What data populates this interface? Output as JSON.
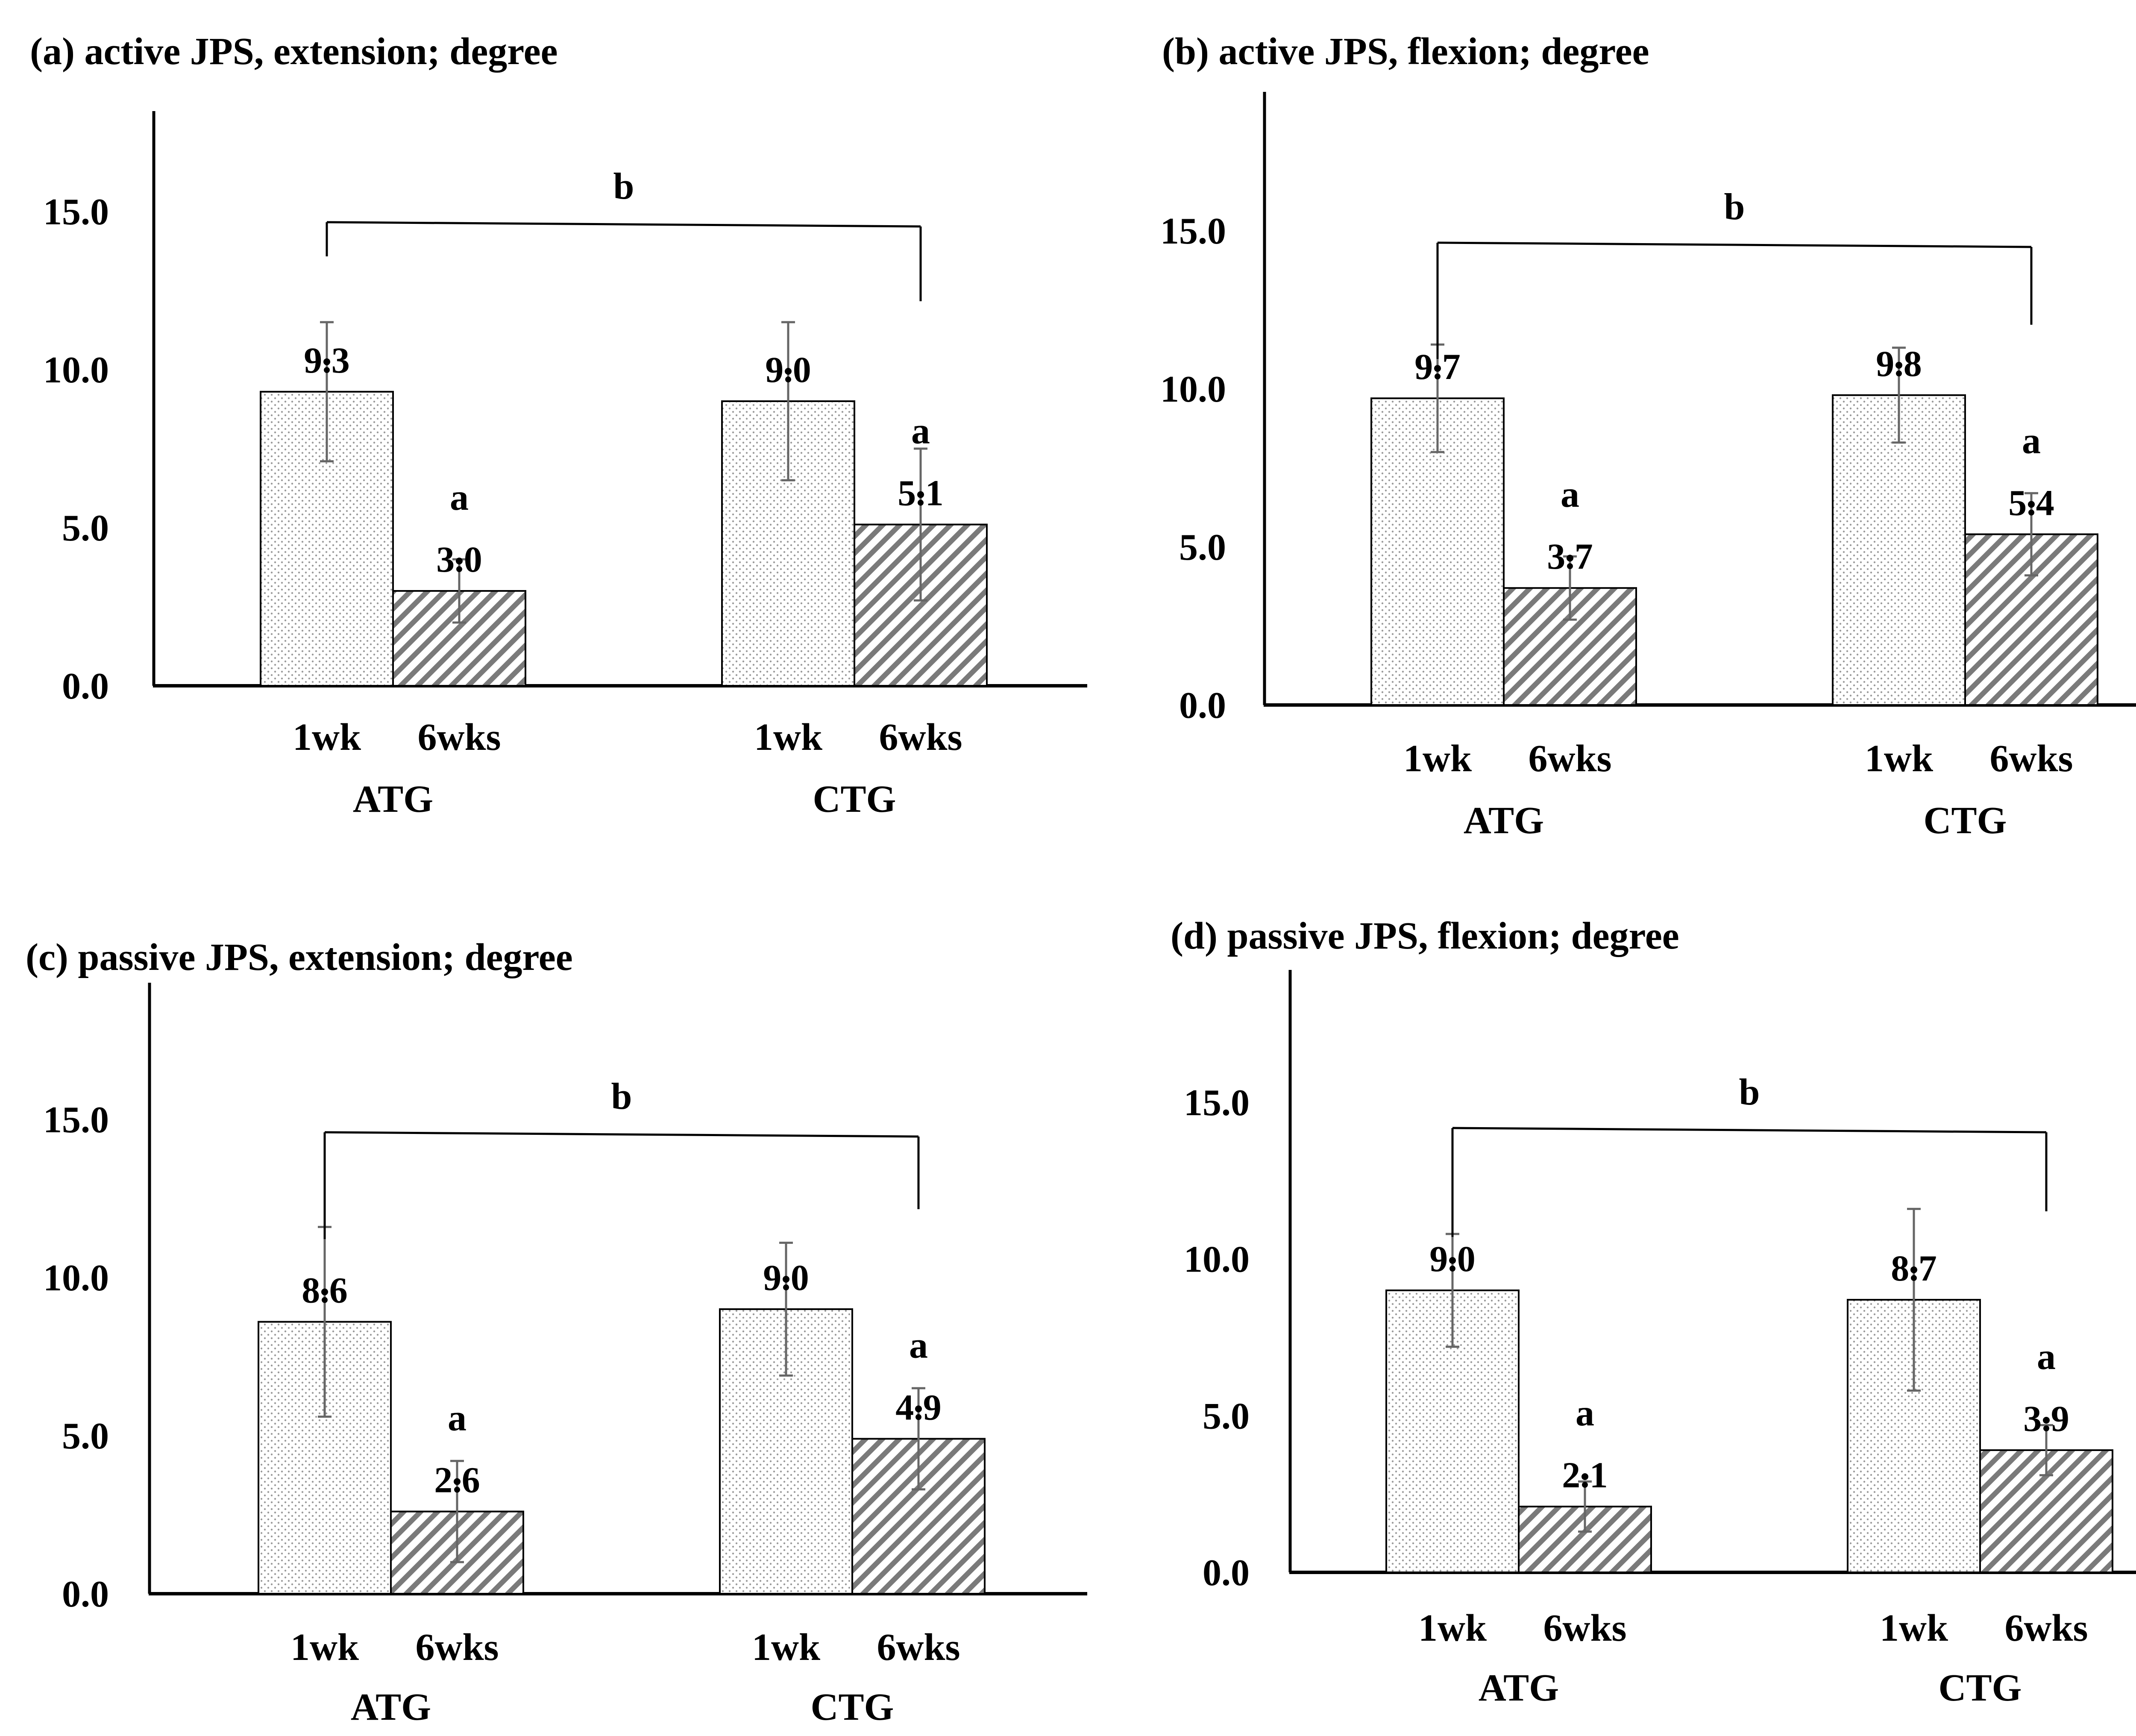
{
  "chart_data": [
    {
      "type": "bar",
      "title": "(a) active JPS, extension; degree",
      "ylim": [
        0,
        18
      ],
      "yticks": [
        "0.0",
        "5.0",
        "10.0",
        "15.0"
      ],
      "groups": [
        "ATG",
        "CTG"
      ],
      "categories": [
        "1wk",
        "6wks"
      ],
      "series": [
        {
          "values": [
            9.3,
            9.0
          ],
          "labels": [
            "9.3",
            "9.0"
          ],
          "error": [
            2.2,
            2.5
          ],
          "pattern": "dots"
        },
        {
          "values": [
            3.0,
            5.1
          ],
          "labels": [
            "3.0",
            "5.1"
          ],
          "error": [
            1.0,
            2.4
          ],
          "pattern": "hatch"
        }
      ],
      "significance": {
        "six_week": "a",
        "bracket": "b"
      }
    },
    {
      "type": "bar",
      "title": "(b) active JPS, flexion; degree",
      "ylim": [
        0,
        18
      ],
      "yticks": [
        "0.0",
        "5.0",
        "10.0",
        "15.0"
      ],
      "groups": [
        "ATG",
        "CTG"
      ],
      "categories": [
        "1wk",
        "6wks"
      ],
      "series": [
        {
          "values": [
            9.7,
            9.8
          ],
          "labels": [
            "9.7",
            "9.8"
          ],
          "error": [
            1.7,
            1.5
          ],
          "pattern": "dots"
        },
        {
          "values": [
            3.7,
            5.4
          ],
          "labels": [
            "3.7",
            "5.4"
          ],
          "error": [
            1.0,
            1.3
          ],
          "pattern": "hatch"
        }
      ],
      "significance": {
        "six_week": "a",
        "bracket": "b"
      }
    },
    {
      "type": "bar",
      "title": "(c) passive JPS, extension; degree",
      "ylim": [
        0,
        18
      ],
      "yticks": [
        "0.0",
        "5.0",
        "10.0",
        "15.0"
      ],
      "groups": [
        "ATG",
        "CTG"
      ],
      "categories": [
        "1wk",
        "6wks"
      ],
      "series": [
        {
          "values": [
            8.6,
            9.0
          ],
          "labels": [
            "8.6",
            "9.0"
          ],
          "error": [
            3.0,
            2.1
          ],
          "pattern": "dots"
        },
        {
          "values": [
            2.6,
            4.9
          ],
          "labels": [
            "2.6",
            "4.9"
          ],
          "error": [
            1.6,
            1.6
          ],
          "pattern": "hatch"
        }
      ],
      "significance": {
        "six_week": "a",
        "bracket": "b"
      }
    },
    {
      "type": "bar",
      "title": "(d) passive JPS, flexion; degree",
      "ylim": [
        0,
        18
      ],
      "yticks": [
        "0.0",
        "5.0",
        "10.0",
        "15.0"
      ],
      "groups": [
        "ATG",
        "CTG"
      ],
      "categories": [
        "1wk",
        "6wks"
      ],
      "series": [
        {
          "values": [
            9.0,
            8.7
          ],
          "labels": [
            "9.0",
            "8.7"
          ],
          "error": [
            1.8,
            2.9
          ],
          "pattern": "dots"
        },
        {
          "values": [
            2.1,
            3.9
          ],
          "labels": [
            "2.1",
            "3.9"
          ],
          "error": [
            0.8,
            0.8
          ],
          "pattern": "hatch"
        }
      ],
      "significance": {
        "six_week": "a",
        "bracket": "b"
      }
    }
  ]
}
